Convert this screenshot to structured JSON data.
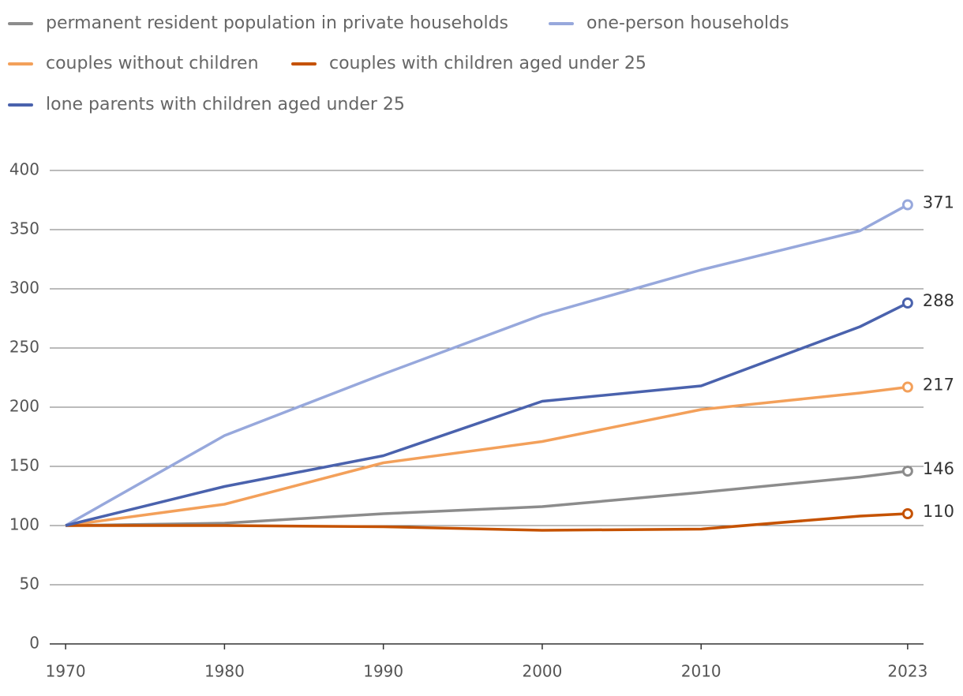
{
  "chart_data": {
    "type": "line",
    "x": [
      1970,
      1980,
      1990,
      2000,
      2010,
      2020,
      2023
    ],
    "xlim": [
      1969,
      2024
    ],
    "xticks": [
      1970,
      1980,
      1990,
      2000,
      2010,
      2023
    ],
    "ylim": [
      0,
      400
    ],
    "yticks": [
      0,
      50,
      100,
      150,
      200,
      250,
      300,
      350,
      400
    ],
    "grid": true,
    "series": [
      {
        "name": "permanent resident population in private households",
        "color": "#8c8c8c",
        "values": [
          100,
          102,
          110,
          116,
          128,
          141,
          146
        ]
      },
      {
        "name": "one-person households",
        "color": "#97a8dc",
        "values": [
          100,
          176,
          228,
          278,
          316,
          349,
          371
        ]
      },
      {
        "name": "couples without children",
        "color": "#f3a05a",
        "values": [
          100,
          118,
          153,
          171,
          198,
          212,
          217
        ]
      },
      {
        "name": "couples with children aged under 25",
        "color": "#c55200",
        "values": [
          100,
          100,
          99,
          96,
          97,
          108,
          110
        ]
      },
      {
        "name": "lone parents with children aged under 25",
        "color": "#4a62ad",
        "values": [
          100,
          133,
          159,
          205,
          218,
          268,
          288
        ]
      }
    ]
  }
}
